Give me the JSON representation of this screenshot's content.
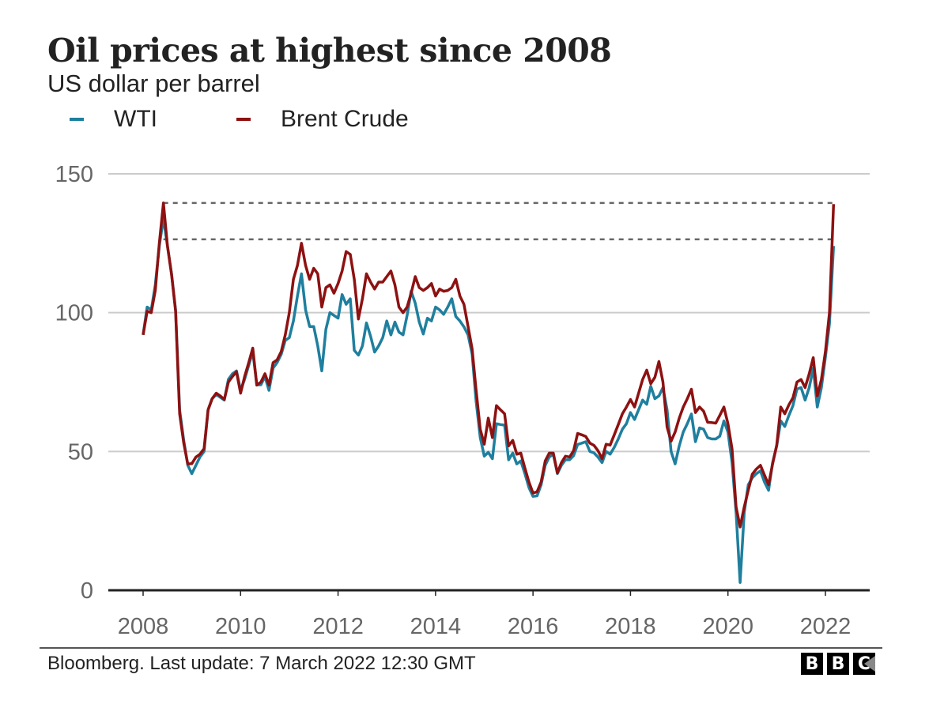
{
  "chart_data": {
    "type": "line",
    "title": "Oil prices at highest since 2008",
    "subtitle": "US dollar per barrel",
    "xlabel": "",
    "ylabel": "",
    "ylim": [
      0,
      150
    ],
    "xlim": [
      "2008-01",
      "2022-12"
    ],
    "yticks": [
      "0",
      "50",
      "100",
      "150"
    ],
    "xticks": [
      "2008",
      "2010",
      "2012",
      "2014",
      "2016",
      "2018",
      "2020",
      "2022"
    ],
    "grid": true,
    "legend_position": "top-left",
    "x": [
      "2008-01",
      "2008-02",
      "2008-03",
      "2008-04",
      "2008-05",
      "2008-06",
      "2008-07",
      "2008-08",
      "2008-09",
      "2008-10",
      "2008-11",
      "2008-12",
      "2009-01",
      "2009-02",
      "2009-03",
      "2009-04",
      "2009-05",
      "2009-06",
      "2009-07",
      "2009-08",
      "2009-09",
      "2009-10",
      "2009-11",
      "2009-12",
      "2010-01",
      "2010-02",
      "2010-03",
      "2010-04",
      "2010-05",
      "2010-06",
      "2010-07",
      "2010-08",
      "2010-09",
      "2010-10",
      "2010-11",
      "2010-12",
      "2011-01",
      "2011-02",
      "2011-03",
      "2011-04",
      "2011-05",
      "2011-06",
      "2011-07",
      "2011-08",
      "2011-09",
      "2011-10",
      "2011-11",
      "2011-12",
      "2012-01",
      "2012-02",
      "2012-03",
      "2012-04",
      "2012-05",
      "2012-06",
      "2012-07",
      "2012-08",
      "2012-09",
      "2012-10",
      "2012-11",
      "2012-12",
      "2013-01",
      "2013-02",
      "2013-03",
      "2013-04",
      "2013-05",
      "2013-06",
      "2013-07",
      "2013-08",
      "2013-09",
      "2013-10",
      "2013-11",
      "2013-12",
      "2014-01",
      "2014-02",
      "2014-03",
      "2014-04",
      "2014-05",
      "2014-06",
      "2014-07",
      "2014-08",
      "2014-09",
      "2014-10",
      "2014-11",
      "2014-12",
      "2015-01",
      "2015-02",
      "2015-03",
      "2015-04",
      "2015-05",
      "2015-06",
      "2015-07",
      "2015-08",
      "2015-09",
      "2015-10",
      "2015-11",
      "2015-12",
      "2016-01",
      "2016-02",
      "2016-03",
      "2016-04",
      "2016-05",
      "2016-06",
      "2016-07",
      "2016-08",
      "2016-09",
      "2016-10",
      "2016-11",
      "2016-12",
      "2017-01",
      "2017-02",
      "2017-03",
      "2017-04",
      "2017-05",
      "2017-06",
      "2017-07",
      "2017-08",
      "2017-09",
      "2017-10",
      "2017-11",
      "2017-12",
      "2018-01",
      "2018-02",
      "2018-03",
      "2018-04",
      "2018-05",
      "2018-06",
      "2018-07",
      "2018-08",
      "2018-09",
      "2018-10",
      "2018-11",
      "2018-12",
      "2019-01",
      "2019-02",
      "2019-03",
      "2019-04",
      "2019-05",
      "2019-06",
      "2019-07",
      "2019-08",
      "2019-09",
      "2019-10",
      "2019-11",
      "2019-12",
      "2020-01",
      "2020-02",
      "2020-03",
      "2020-04",
      "2020-05",
      "2020-06",
      "2020-07",
      "2020-08",
      "2020-09",
      "2020-10",
      "2020-11",
      "2020-12",
      "2021-01",
      "2021-02",
      "2021-03",
      "2021-04",
      "2021-05",
      "2021-06",
      "2021-07",
      "2021-08",
      "2021-09",
      "2021-10",
      "2021-11",
      "2021-12",
      "2022-01",
      "2022-02",
      "2022-03"
    ],
    "series": [
      {
        "name": "WTI",
        "color": "#1f7f9e",
        "values": [
          92,
          102,
          101,
          110,
          124,
          134,
          124,
          114,
          101,
          65,
          54,
          45,
          42,
          45,
          48,
          50,
          65,
          69,
          70.5,
          69.5,
          68.5,
          76,
          78,
          79,
          72,
          76,
          81,
          86,
          74,
          74,
          77,
          72,
          80,
          82,
          85,
          90,
          91,
          97,
          106,
          114,
          101,
          95,
          95,
          88,
          79,
          94,
          100,
          99,
          98,
          106.5,
          103,
          105,
          86.4,
          84.7,
          88,
          96.3,
          91.5,
          85.8,
          88,
          91,
          97,
          92,
          96.6,
          93,
          92,
          99,
          107.7,
          103.4,
          96.6,
          92.3,
          98,
          97,
          102,
          101,
          99.4,
          102,
          105,
          98.6,
          97,
          94.9,
          92,
          85.2,
          68,
          55,
          48.3,
          49.7,
          47.4,
          60,
          59.7,
          59.5,
          47,
          49.4,
          45.5,
          46.6,
          42,
          37,
          33.8,
          34,
          38,
          45,
          48,
          49,
          42,
          45,
          47,
          47,
          48.5,
          52.5,
          53,
          53.5,
          50,
          49.5,
          48,
          46,
          50,
          49,
          51.5,
          54.5,
          58,
          60,
          64,
          61.5,
          65,
          68.5,
          67,
          73.5,
          69,
          70,
          73,
          65,
          50,
          45.5,
          52,
          57,
          60,
          63.5,
          53.5,
          58.5,
          58,
          55,
          54.5,
          54.5,
          55.5,
          61,
          57,
          46,
          28,
          2.8,
          28,
          38,
          40.5,
          42,
          43,
          39,
          36,
          46,
          52,
          61,
          59,
          63,
          66.5,
          72.5,
          73,
          68.5,
          73,
          80,
          66,
          73,
          84,
          96,
          124
        ]
      },
      {
        "name": "Brent Crude",
        "color": "#8e1111",
        "values": [
          92,
          100.5,
          100,
          108,
          125,
          139.5,
          124,
          113.7,
          100.5,
          63.6,
          53,
          45.5,
          45.6,
          48,
          49,
          51,
          65,
          69,
          71,
          70,
          68.7,
          75,
          77,
          78.7,
          71,
          77,
          82,
          87.2,
          73.9,
          75,
          78,
          73.9,
          82,
          83,
          86,
          92,
          100,
          112,
          117,
          125,
          117,
          112,
          116,
          114,
          102,
          109,
          110,
          107,
          110.5,
          115,
          122,
          121,
          112,
          97.7,
          105,
          114,
          111,
          108.5,
          111,
          111,
          113,
          115,
          110,
          102,
          100,
          102,
          107,
          113,
          109,
          108,
          109,
          110.5,
          106,
          108.5,
          107.7,
          108,
          109,
          112,
          106,
          103,
          95,
          87,
          72,
          58,
          52.6,
          62,
          55,
          66.5,
          65,
          63.6,
          52,
          54,
          49,
          49.4,
          44,
          39,
          35,
          35.5,
          39,
          46.6,
          49.4,
          49.4,
          42.3,
          46,
          48.3,
          48,
          50.3,
          56.5,
          56,
          55.4,
          53,
          52.2,
          50.3,
          47.4,
          52.6,
          52.3,
          56,
          59.7,
          63.6,
          66,
          68.7,
          66,
          71,
          75.9,
          79.3,
          74.4,
          76.7,
          82.4,
          75,
          58.8,
          53.7,
          57,
          62,
          66,
          69,
          72.4,
          64,
          66,
          64.5,
          60.5,
          60.4,
          60.2,
          63,
          66,
          60,
          50.9,
          30,
          22.8,
          30,
          36,
          41.8,
          43.7,
          45,
          41.5,
          38,
          45.5,
          52.3,
          66,
          63.6,
          66.8,
          69.3,
          75,
          75.9,
          73,
          78,
          83.8,
          70,
          75.9,
          86,
          100,
          139.1
        ]
      }
    ],
    "reference_lines": [
      {
        "value": 139.5,
        "from": "2008-06",
        "to": "2022-03",
        "style": "dashed"
      },
      {
        "value": 126.4,
        "from": "2008-06",
        "to": "2022-03",
        "style": "dashed"
      }
    ]
  },
  "footer": {
    "source": "Bloomberg. Last update: 7 March 2022 12:30 GMT",
    "logo": "BBC"
  },
  "colors": {
    "grid": "#cccccc",
    "axis": "#222222",
    "tick_text": "#666666",
    "reference": "#666666"
  }
}
